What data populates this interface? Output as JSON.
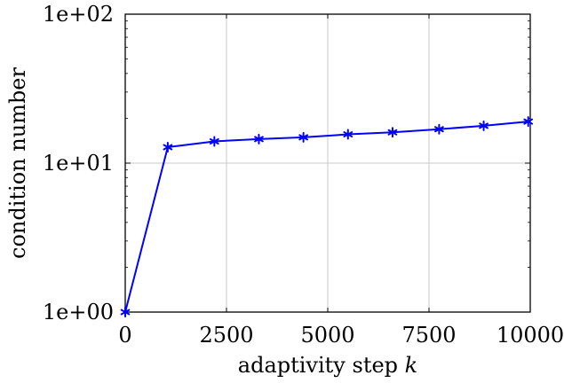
{
  "chart_data": {
    "type": "line",
    "title": "",
    "xlabel": "adaptivity step",
    "xlabel_var": "k",
    "ylabel": "condition number",
    "y_scale": "log",
    "xlim": [
      0,
      10000
    ],
    "ylim": [
      1,
      100
    ],
    "grid": true,
    "x_ticks": [
      {
        "value": 0,
        "label": "0"
      },
      {
        "value": 2500,
        "label": "2500"
      },
      {
        "value": 5000,
        "label": "5000"
      },
      {
        "value": 7500,
        "label": "7500"
      },
      {
        "value": 10000,
        "label": "10000"
      }
    ],
    "y_ticks": [
      {
        "value": 1,
        "label": "1e+00"
      },
      {
        "value": 10,
        "label": "1e+01"
      },
      {
        "value": 100,
        "label": "1e+02"
      }
    ],
    "series": [
      {
        "color": "#0000ff",
        "marker": "asterisk",
        "x": [
          0,
          1050,
          2200,
          3300,
          4400,
          5500,
          6600,
          7750,
          8850,
          9950
        ],
        "y": [
          1.0,
          12.8,
          14.0,
          14.5,
          14.9,
          15.6,
          16.1,
          16.9,
          17.8,
          19.0
        ]
      }
    ]
  }
}
